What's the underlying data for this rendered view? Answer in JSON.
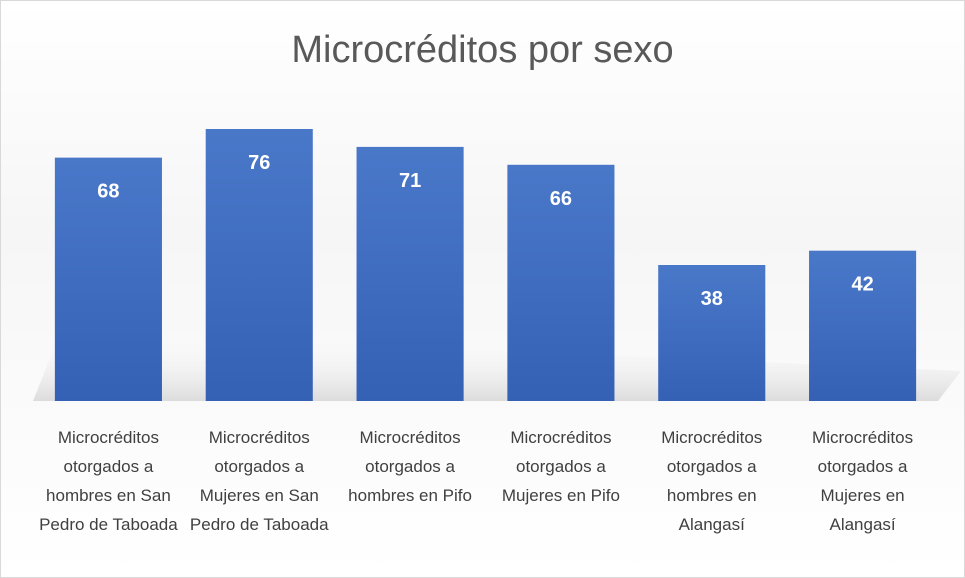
{
  "chart_data": {
    "type": "bar",
    "title": "Microcréditos por sexo",
    "categories": [
      "Microcréditos otorgados a hombres en San Pedro de Taboada",
      "Microcréditos otorgados a Mujeres en San Pedro de Taboada",
      "Microcréditos otorgados a hombres en Pifo",
      "Microcréditos otorgados a Mujeres en Pifo",
      "Microcréditos otorgados a hombres en Alangasí",
      "Microcréditos otorgados a Mujeres en Alangasí"
    ],
    "values": [
      68,
      76,
      71,
      66,
      38,
      42
    ],
    "color": "#4472c4"
  }
}
